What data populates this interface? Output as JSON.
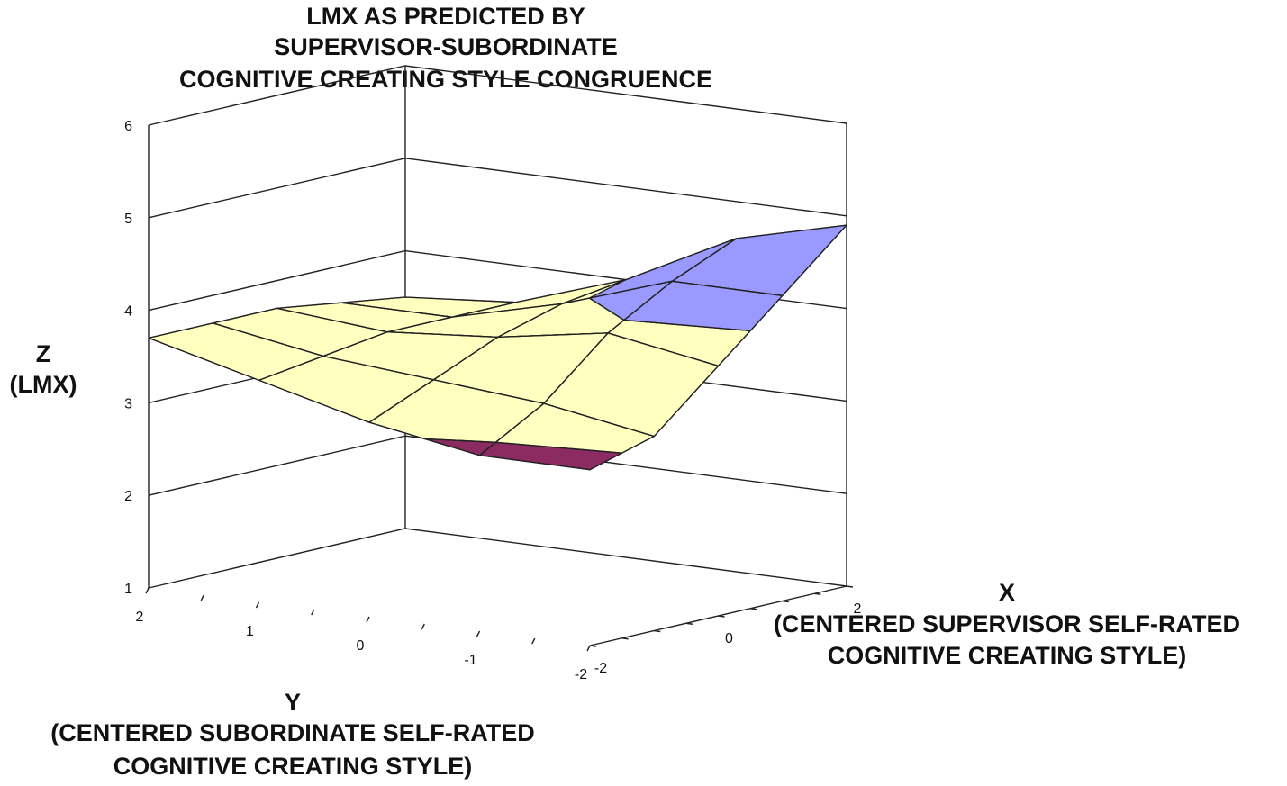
{
  "chart_data": {
    "type": "surface",
    "title": [
      "LMX AS PREDICTED BY",
      "SUPERVISOR-SUBORDINATE",
      "COGNITIVE CREATING STYLE CONGRUENCE"
    ],
    "zlabel": [
      "Z",
      "(LMX)"
    ],
    "xlabel": [
      "X",
      "(CENTERED SUPERVISOR SELF-RATED",
      "COGNITIVE CREATING STYLE)"
    ],
    "ylabel": [
      "Y",
      "(CENTERED SUBORDINATE SELF-RATED",
      "COGNITIVE CREATING STYLE)"
    ],
    "z_ticks": [
      "1",
      "2",
      "3",
      "4",
      "5",
      "6"
    ],
    "x_ticks": [
      "-2",
      "0",
      "2"
    ],
    "y_ticks": [
      "2",
      "1",
      "0",
      "-1",
      "-2"
    ],
    "zlim": [
      1,
      6
    ],
    "xlim": [
      -2,
      2
    ],
    "ylim": [
      -2,
      2
    ],
    "x": [
      -2,
      -1,
      0,
      1,
      2
    ],
    "y": [
      -2,
      -1,
      0,
      1,
      2
    ],
    "z_rows_by_y": [
      [
        2.9,
        3.1,
        3.7,
        4.3,
        4.9
      ],
      [
        2.9,
        3.3,
        3.9,
        4.3,
        4.6
      ],
      [
        3.1,
        3.4,
        3.7,
        3.9,
        4.0
      ],
      [
        3.4,
        3.5,
        3.6,
        3.6,
        3.6
      ],
      [
        3.7,
        3.7,
        3.7,
        3.6,
        3.5
      ]
    ],
    "color_bands": [
      {
        "range": [
          1,
          3
        ],
        "color": "#8b2b61"
      },
      {
        "range": [
          3,
          4
        ],
        "color": "#ffffc0"
      },
      {
        "range": [
          4,
          6
        ],
        "color": "#9999ff"
      }
    ],
    "grid": true
  }
}
